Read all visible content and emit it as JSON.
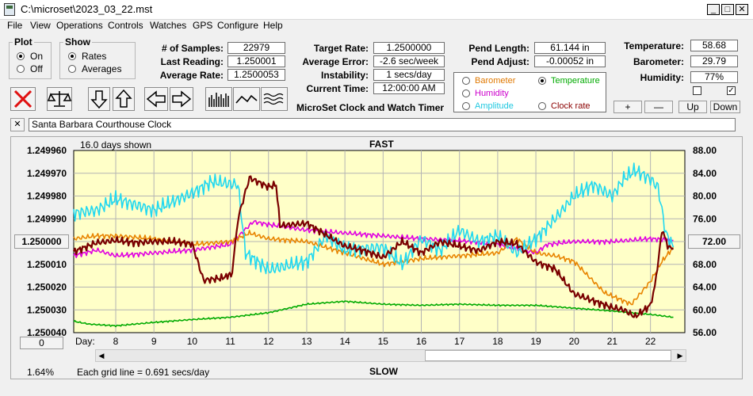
{
  "window": {
    "title": "C:\\microset\\2023_03_22.mst"
  },
  "menu": [
    "File",
    "View",
    "Operations",
    "Controls",
    "Watches",
    "GPS",
    "Configure",
    "Help"
  ],
  "plot_group": {
    "legend": "Plot",
    "options": [
      {
        "label": "On",
        "selected": true
      },
      {
        "label": "Off",
        "selected": false
      }
    ]
  },
  "show_group": {
    "legend": "Show",
    "options": [
      {
        "label": "Rates",
        "selected": true
      },
      {
        "label": "Averages",
        "selected": false
      }
    ]
  },
  "fields": {
    "samples": {
      "label": "# of Samples:",
      "value": "22979"
    },
    "last_reading": {
      "label": "Last Reading:",
      "value": "1.250001"
    },
    "average_rate": {
      "label": "Average Rate:",
      "value": "1.2500053"
    },
    "target_rate": {
      "label": "Target Rate:",
      "value": "1.2500000"
    },
    "average_error": {
      "label": "Average Error:",
      "value": "-2.6 sec/week"
    },
    "instability": {
      "label": "Instability:",
      "value": "1 secs/day"
    },
    "current_time": {
      "label": "Current Time:",
      "value": "12:00:00 AM"
    },
    "pend_length": {
      "label": "Pend Length:",
      "value": "61.144 in"
    },
    "pend_adjust": {
      "label": "Pend Adjust:",
      "value": "-0.00052 in"
    },
    "temperature": {
      "label": "Temperature:",
      "value": "58.68"
    },
    "barometer": {
      "label": "Barometer:",
      "value": "29.79"
    },
    "humidity": {
      "label": "Humidity:",
      "value": "77%"
    }
  },
  "app_caption": "MicroSet Clock and Watch Timer",
  "sensor_select": {
    "options": [
      {
        "label": "Barometer",
        "color": "#e07800",
        "selected": false
      },
      {
        "label": "Temperature",
        "color": "#00aa00",
        "selected": true
      },
      {
        "label": "Humidity",
        "color": "#cc00cc",
        "selected": false
      },
      {
        "label": "Amplitude",
        "color": "#20c8e0",
        "selected": false
      },
      {
        "label": "Clock rate",
        "color": "#8b0000",
        "selected": false
      }
    ]
  },
  "checkboxes": [
    {
      "checked": false
    },
    {
      "checked": true
    }
  ],
  "scale_buttons": {
    "plus": "+",
    "minus": "—",
    "up": "Up",
    "down": "Down"
  },
  "clock_name": {
    "close": "✕",
    "value": "Santa Barbara Courthouse Clock"
  },
  "chart_header": {
    "days_shown": "16.0 days shown",
    "top_label": "FAST",
    "bottom_label": "SLOW",
    "grid_note": "Each grid line = 0.691 secs/day",
    "percent": "1.64%",
    "day_prefix": "Day:"
  },
  "rate_button": "1.250000",
  "temp_button": "72.00",
  "zero_button": "0",
  "colors": {
    "plot_bg": "#ffffc8",
    "grid": "#b4b4b4",
    "clock_rate": "#7a0000",
    "amplitude": "#20d8f0",
    "humidity": "#e000e0",
    "barometer": "#e88400",
    "temperature": "#00aa00"
  },
  "chart_data": {
    "type": "line",
    "title": "",
    "x_label": "Day:",
    "x_range": [
      6.9,
      22.9
    ],
    "x_ticks": [
      8,
      9,
      10,
      11,
      12,
      13,
      14,
      15,
      16,
      17,
      18,
      19,
      20,
      21,
      22
    ],
    "y_left": {
      "ticks": [
        "1.249960",
        "1.249970",
        "1.249980",
        "1.249990",
        "1.250000",
        "1.250010",
        "1.250020",
        "1.250030",
        "1.250040"
      ],
      "range": [
        1.25004,
        1.24996
      ],
      "note": "rate axis, smaller values at top (FAST)"
    },
    "y_right": {
      "ticks": [
        "88.00",
        "84.00",
        "80.00",
        "76.00",
        "72.00",
        "68.00",
        "64.00",
        "60.00",
        "56.00"
      ],
      "range": [
        56,
        88
      ]
    },
    "series": [
      {
        "key": "temperature",
        "axis": "right",
        "points": [
          [
            6.9,
            58.0
          ],
          [
            7.3,
            57.5
          ],
          [
            8,
            57.2
          ],
          [
            9,
            57.8
          ],
          [
            10,
            58.3
          ],
          [
            11,
            58.7
          ],
          [
            12,
            59.5
          ],
          [
            13,
            61
          ],
          [
            14,
            61.5
          ],
          [
            15,
            61
          ],
          [
            16,
            60.8
          ],
          [
            17,
            61
          ],
          [
            18,
            60.8
          ],
          [
            19,
            60.8
          ],
          [
            20,
            60.3
          ],
          [
            21,
            59.8
          ],
          [
            22,
            59.2
          ],
          [
            22.6,
            58.7
          ]
        ]
      },
      {
        "key": "humidity",
        "axis": "right",
        "points": [
          [
            6.9,
            69.5
          ],
          [
            7.5,
            70.5
          ],
          [
            8,
            69.5
          ],
          [
            9,
            70
          ],
          [
            10,
            70.5
          ],
          [
            11,
            71.5
          ],
          [
            11.3,
            73.5
          ],
          [
            11.6,
            75.5
          ],
          [
            12,
            75
          ],
          [
            13,
            74
          ],
          [
            14,
            73.5
          ],
          [
            15,
            73
          ],
          [
            16,
            72.5
          ],
          [
            17,
            72.2
          ],
          [
            18,
            71.5
          ],
          [
            19,
            70
          ],
          [
            19.3,
            71.5
          ],
          [
            20,
            72
          ],
          [
            21,
            72
          ],
          [
            22,
            72.5
          ],
          [
            22.6,
            72.2
          ]
        ]
      },
      {
        "key": "barometer",
        "axis": "right",
        "points": [
          [
            6.9,
            72.5
          ],
          [
            7.5,
            73
          ],
          [
            8,
            73
          ],
          [
            9,
            72.5
          ],
          [
            10,
            71.5
          ],
          [
            11,
            72
          ],
          [
            11.5,
            73.5
          ],
          [
            12,
            72.5
          ],
          [
            13,
            72
          ],
          [
            14,
            70
          ],
          [
            15,
            68
          ],
          [
            16,
            69
          ],
          [
            17,
            69.5
          ],
          [
            18,
            70
          ],
          [
            18.5,
            72.5
          ],
          [
            19,
            70
          ],
          [
            19.5,
            69.5
          ],
          [
            20,
            68.5
          ],
          [
            20.8,
            63
          ],
          [
            21.5,
            61
          ],
          [
            22,
            65
          ],
          [
            22.3,
            68.5
          ],
          [
            22.6,
            71
          ]
        ]
      },
      {
        "key": "amplitude",
        "axis": "right",
        "points": [
          [
            6.9,
            77
          ],
          [
            7.5,
            77.5
          ],
          [
            8,
            79.5
          ],
          [
            9,
            77.5
          ],
          [
            10,
            80.5
          ],
          [
            10.5,
            82.5
          ],
          [
            11.2,
            82
          ],
          [
            11.4,
            70
          ],
          [
            12,
            67
          ],
          [
            13,
            68.5
          ],
          [
            13.5,
            73
          ],
          [
            14,
            70.5
          ],
          [
            15,
            71
          ],
          [
            15.5,
            68
          ],
          [
            16,
            72.5
          ],
          [
            16.5,
            70.5
          ],
          [
            17,
            74
          ],
          [
            17.5,
            72
          ],
          [
            18,
            73
          ],
          [
            18.5,
            70
          ],
          [
            19,
            72.5
          ],
          [
            19.5,
            76
          ],
          [
            20,
            80
          ],
          [
            20.5,
            82
          ],
          [
            21,
            80
          ],
          [
            21.3,
            83
          ],
          [
            21.6,
            84.5
          ],
          [
            22,
            83
          ],
          [
            22.2,
            81.5
          ],
          [
            22.4,
            73.5
          ],
          [
            22.6,
            71
          ]
        ]
      },
      {
        "key": "clock_rate",
        "axis": "left",
        "points": [
          [
            6.9,
            1.2500045
          ],
          [
            7.5,
            1.2500005
          ],
          [
            8,
            1.2499995
          ],
          [
            8.5,
            1.2500005
          ],
          [
            9,
            1.25
          ],
          [
            9.5,
            1.25
          ],
          [
            10,
            1.250001
          ],
          [
            10.3,
            1.250017
          ],
          [
            10.8,
            1.250016
          ],
          [
            11.05,
            1.250014
          ],
          [
            11.2,
            1.24999
          ],
          [
            11.5,
            1.249972
          ],
          [
            12,
            1.249976
          ],
          [
            12.2,
            1.249975
          ],
          [
            12.3,
            1.249993
          ],
          [
            13,
            1.249992
          ],
          [
            13.5,
            1.249997
          ],
          [
            14,
            1.250002
          ],
          [
            14.5,
            1.250004
          ],
          [
            15,
            1.250007
          ],
          [
            15.5,
            1.25
          ],
          [
            16,
            1.250005
          ],
          [
            16.5,
            1.25
          ],
          [
            17,
            1.250002
          ],
          [
            17.5,
            1.250004
          ],
          [
            18,
            1.25
          ],
          [
            18.5,
            1.250001
          ],
          [
            19,
            1.250009
          ],
          [
            19.5,
            1.250012
          ],
          [
            20,
            1.250023
          ],
          [
            20.5,
            1.250026
          ],
          [
            21,
            1.250029
          ],
          [
            21.3,
            1.25003
          ],
          [
            21.6,
            1.250033
          ],
          [
            22,
            1.250028
          ],
          [
            22.15,
            1.250016
          ],
          [
            22.3,
            1.249995
          ],
          [
            22.45,
            1.250002
          ],
          [
            22.6,
            1.250003
          ]
        ]
      }
    ]
  }
}
